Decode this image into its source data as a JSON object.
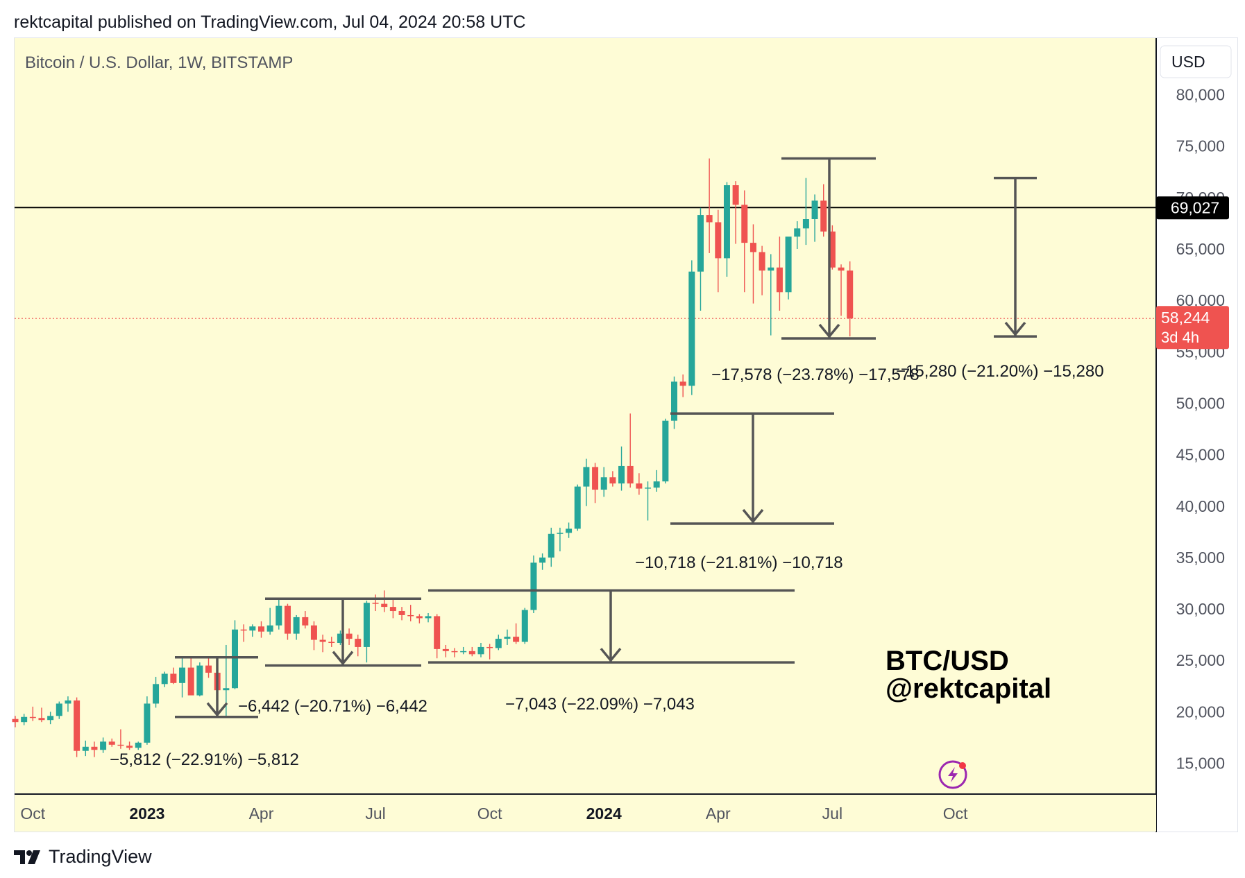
{
  "header": {
    "text": "rektcapital published on TradingView.com, Jul 04, 2024 20:58 UTC"
  },
  "footer": {
    "brand": "TradingView"
  },
  "chart_data": {
    "type": "candlestick",
    "title": "Bitcoin / U.S. Dollar, 1W, BITSTAMP",
    "currency": "USD",
    "watermark": [
      "BTC/USD",
      "@rektcapital"
    ],
    "ylim": [
      12000,
      85500
    ],
    "y_ticks": [
      15000,
      20000,
      25000,
      30000,
      35000,
      40000,
      45000,
      50000,
      55000,
      60000,
      65000,
      70000,
      75000,
      80000
    ],
    "y_tick_labels": [
      "15,000",
      "20,000",
      "25,000",
      "30,000",
      "35,000",
      "40,000",
      "45,000",
      "50,000",
      "55,000",
      "60,000",
      "65,000",
      "70,000",
      "75,000",
      "80,000"
    ],
    "x_ticks": [
      {
        "label": "Oct",
        "week": 2,
        "bold": false
      },
      {
        "label": "2023",
        "week": 15,
        "bold": true
      },
      {
        "label": "Apr",
        "week": 28,
        "bold": false
      },
      {
        "label": "Jul",
        "week": 41,
        "bold": false
      },
      {
        "label": "Oct",
        "week": 54,
        "bold": false
      },
      {
        "label": "2024",
        "week": 67,
        "bold": true
      },
      {
        "label": "Apr",
        "week": 80,
        "bold": false
      },
      {
        "label": "Jul",
        "week": 93,
        "bold": false
      },
      {
        "label": "Oct",
        "week": 107,
        "bold": false
      }
    ],
    "horizontal_line": {
      "value": 69027,
      "label": "69,027",
      "color": "#000000"
    },
    "last_price": {
      "value": 58244,
      "label": "58,244",
      "countdown": "3d 4h",
      "color": "#ef5350"
    },
    "colors": {
      "up": "#26a69a",
      "down": "#ef5350",
      "background": "#fefcd6",
      "annotation": "#555555"
    },
    "candles": [
      [
        19300,
        19600,
        18500,
        19000
      ],
      [
        19000,
        19800,
        18700,
        19500
      ],
      [
        19500,
        20500,
        19100,
        19400
      ],
      [
        19400,
        20400,
        19000,
        19200
      ],
      [
        19200,
        20000,
        18800,
        19600
      ],
      [
        19600,
        21000,
        19300,
        20800
      ],
      [
        20800,
        21500,
        20000,
        21100
      ],
      [
        21100,
        21400,
        15600,
        16200
      ],
      [
        16200,
        17200,
        15700,
        16600
      ],
      [
        16600,
        17100,
        15600,
        16300
      ],
      [
        16300,
        17500,
        16000,
        17100
      ],
      [
        17100,
        17400,
        16600,
        16800
      ],
      [
        16800,
        18300,
        16400,
        16700
      ],
      [
        16700,
        17100,
        16300,
        16500
      ],
      [
        16500,
        17100,
        16300,
        17000
      ],
      [
        17000,
        21500,
        16800,
        20800
      ],
      [
        20800,
        23400,
        20400,
        22700
      ],
      [
        22700,
        23900,
        22400,
        23700
      ],
      [
        23700,
        24300,
        22700,
        22800
      ],
      [
        22800,
        25200,
        21400,
        24300
      ],
      [
        24300,
        25300,
        21800,
        21600
      ],
      [
        21600,
        24800,
        21500,
        24500
      ],
      [
        24500,
        25200,
        23300,
        23800
      ],
      [
        23800,
        24500,
        21500,
        22100
      ],
      [
        22100,
        26500,
        19600,
        22300
      ],
      [
        22300,
        28900,
        22200,
        28000
      ],
      [
        28000,
        28500,
        26800,
        27900
      ],
      [
        27900,
        28500,
        27300,
        28300
      ],
      [
        28300,
        28800,
        27200,
        27800
      ],
      [
        27800,
        30100,
        27500,
        28400
      ],
      [
        28400,
        30900,
        28000,
        30300
      ],
      [
        30300,
        30500,
        27000,
        27600
      ],
      [
        27600,
        29400,
        27000,
        29200
      ],
      [
        29200,
        29800,
        28100,
        28400
      ],
      [
        28400,
        28800,
        26000,
        27000
      ],
      [
        27000,
        27500,
        25800,
        26800
      ],
      [
        26800,
        27300,
        26300,
        26700
      ],
      [
        26700,
        27900,
        26500,
        27600
      ],
      [
        27600,
        28100,
        26500,
        27100
      ],
      [
        27100,
        27500,
        25400,
        26300
      ],
      [
        26300,
        30800,
        24800,
        30600
      ],
      [
        30600,
        31400,
        29800,
        30500
      ],
      [
        30500,
        31800,
        29700,
        30200
      ],
      [
        30200,
        31100,
        29100,
        29800
      ],
      [
        29800,
        30200,
        28900,
        29400
      ],
      [
        29400,
        30400,
        28800,
        29300
      ],
      [
        29300,
        29500,
        28600,
        29100
      ],
      [
        29100,
        29600,
        28700,
        29300
      ],
      [
        29300,
        29500,
        25200,
        26100
      ],
      [
        26100,
        26500,
        25300,
        25900
      ],
      [
        25900,
        26200,
        25300,
        25800
      ],
      [
        25800,
        26300,
        25600,
        25900
      ],
      [
        25900,
        26300,
        25400,
        25600
      ],
      [
        25600,
        26700,
        25300,
        26300
      ],
      [
        26300,
        26600,
        25100,
        26200
      ],
      [
        26200,
        27500,
        26000,
        27100
      ],
      [
        27100,
        28000,
        26500,
        27300
      ],
      [
        27300,
        28600,
        26600,
        26800
      ],
      [
        26800,
        30100,
        26600,
        29900
      ],
      [
        29900,
        35200,
        29600,
        34500
      ],
      [
        34500,
        35400,
        33800,
        35000
      ],
      [
        35000,
        37900,
        34100,
        37300
      ],
      [
        37300,
        37900,
        35600,
        37400
      ],
      [
        37400,
        38400,
        36900,
        37800
      ],
      [
        37800,
        42100,
        37600,
        41900
      ],
      [
        41900,
        44600,
        40000,
        43800
      ],
      [
        43800,
        44200,
        40300,
        41600
      ],
      [
        41600,
        43800,
        40900,
        42800
      ],
      [
        42800,
        43400,
        41900,
        42200
      ],
      [
        42200,
        45800,
        41500,
        43900
      ],
      [
        43900,
        49000,
        41800,
        42200
      ],
      [
        42200,
        43200,
        41100,
        41700
      ],
      [
        41700,
        42400,
        38600,
        41800
      ],
      [
        41800,
        43500,
        41400,
        42400
      ],
      [
        42400,
        48500,
        42200,
        48300
      ],
      [
        48300,
        52600,
        47500,
        52100
      ],
      [
        52100,
        52800,
        50600,
        51700
      ],
      [
        51700,
        63900,
        50800,
        62800
      ],
      [
        62800,
        69000,
        59000,
        68300
      ],
      [
        68300,
        73800,
        64600,
        67600
      ],
      [
        67600,
        68800,
        60800,
        64100
      ],
      [
        64100,
        71500,
        62300,
        71200
      ],
      [
        71200,
        71600,
        65500,
        69300
      ],
      [
        69300,
        70700,
        60800,
        65600
      ],
      [
        65600,
        67400,
        59700,
        64700
      ],
      [
        64700,
        65300,
        60500,
        62900
      ],
      [
        62900,
        64500,
        56600,
        63200
      ],
      [
        63200,
        66200,
        59000,
        60800
      ],
      [
        60800,
        65800,
        60100,
        66200
      ],
      [
        66200,
        67700,
        65000,
        67000
      ],
      [
        67000,
        71900,
        65400,
        67900
      ],
      [
        67900,
        70300,
        65700,
        69700
      ],
      [
        69700,
        71300,
        66200,
        66700
      ],
      [
        66700,
        67300,
        63000,
        63200
      ],
      [
        63200,
        63500,
        58500,
        62900
      ],
      [
        62900,
        63800,
        56500,
        58244
      ]
    ],
    "ranges": [
      {
        "label": "−5,812 (−22.91%) −5,812"
      },
      {
        "label": "−6,442 (−20.71%) −6,442"
      },
      {
        "label": "−7,043 (−22.09%) −7,043"
      },
      {
        "label": "−10,718 (−21.81%) −10,718"
      },
      {
        "label": "−17,578 (−23.78%) −17,578"
      },
      {
        "label": "−15,280 (−21.20%) −15,280"
      }
    ]
  }
}
